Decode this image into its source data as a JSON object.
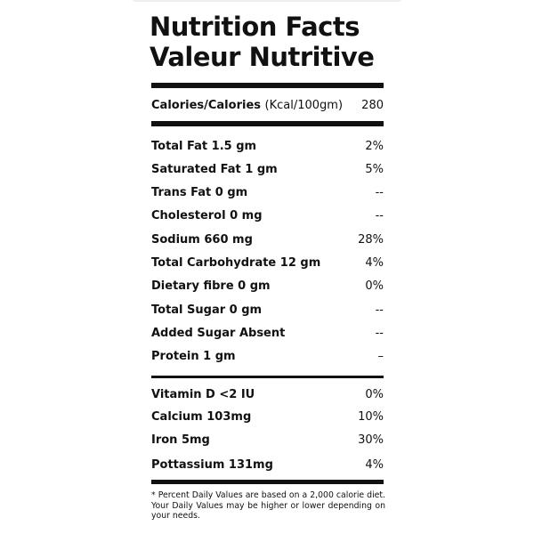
{
  "title_en": "Nutrition Facts",
  "title_fr": "Valeur Nutritive",
  "calories": {
    "label": "Calories/Calories",
    "unit": "(Kcal/100gm)",
    "value": "280"
  },
  "nutrients": [
    {
      "label": "Total Fat 1.5 gm",
      "value": "2%"
    },
    {
      "label": "Saturated Fat 1 gm",
      "value": "5%"
    },
    {
      "label": "Trans Fat 0 gm",
      "value": "--"
    },
    {
      "label": "Cholesterol 0 mg",
      "value": "--"
    },
    {
      "label": "Sodium 660 mg",
      "value": "28%"
    },
    {
      "label": "Total Carbohydrate 12 gm",
      "value": "4%"
    },
    {
      "label": "Dietary fibre 0 gm",
      "value": "0%"
    },
    {
      "label": "Total Sugar 0 gm",
      "value": "--"
    },
    {
      "label": "Added Sugar Absent",
      "value": "--"
    },
    {
      "label": "Protein 1 gm",
      "value": "–"
    }
  ],
  "vitamins": [
    {
      "label": "Vitamin D <2 IU",
      "value": "0%"
    },
    {
      "label": "Calcium 103mg",
      "value": "10%"
    },
    {
      "label": "Iron 5mg",
      "value": "30%"
    },
    {
      "label": "Pottassium 131mg",
      "value": "4%"
    }
  ],
  "footnote": "* Percent Daily Values are based on a 2,000 calorie diet. Your Daily Values may be higher or lower depending on your needs."
}
